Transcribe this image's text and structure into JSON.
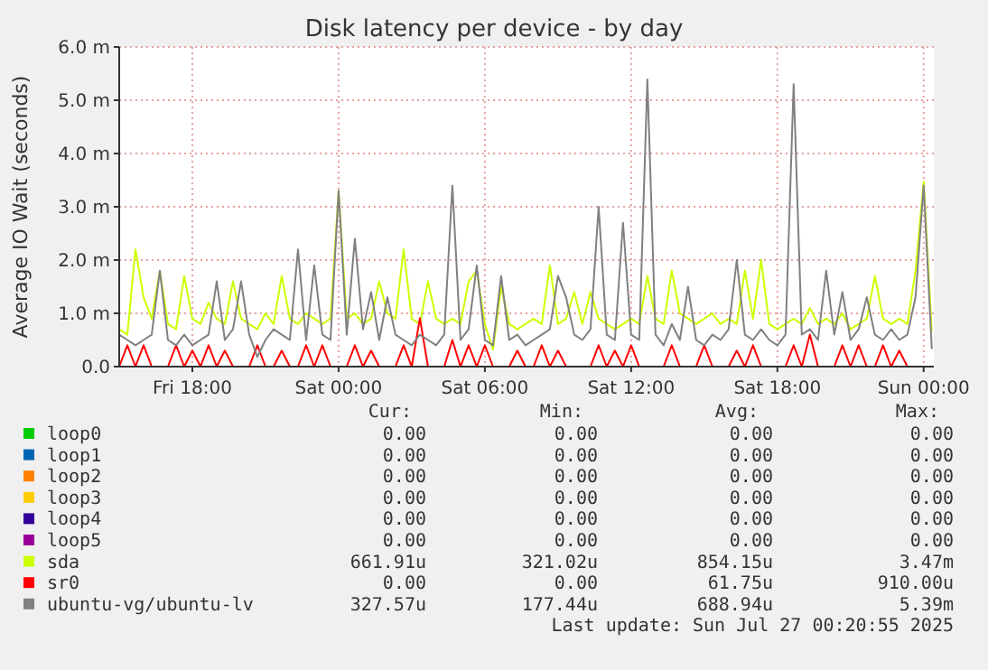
{
  "chart_data": {
    "type": "line",
    "title": "Disk latency per device - by day",
    "ylabel": "Average IO Wait (seconds)",
    "x": [
      "2025-07-25T15:00",
      "2025-07-25T15:20",
      "2025-07-25T15:40",
      "2025-07-25T16:00",
      "2025-07-25T16:20",
      "2025-07-25T16:40",
      "2025-07-25T17:00",
      "2025-07-25T17:20",
      "2025-07-25T17:40",
      "2025-07-25T18:00",
      "2025-07-25T18:20",
      "2025-07-25T18:40",
      "2025-07-25T19:00",
      "2025-07-25T19:20",
      "2025-07-25T19:40",
      "2025-07-25T20:00",
      "2025-07-25T20:20",
      "2025-07-25T20:40",
      "2025-07-25T21:00",
      "2025-07-25T21:20",
      "2025-07-25T21:40",
      "2025-07-25T22:00",
      "2025-07-25T22:20",
      "2025-07-25T22:40",
      "2025-07-25T23:00",
      "2025-07-25T23:20",
      "2025-07-25T23:40",
      "2025-07-26T00:00",
      "2025-07-26T00:20",
      "2025-07-26T00:40",
      "2025-07-26T01:00",
      "2025-07-26T01:20",
      "2025-07-26T01:40",
      "2025-07-26T02:00",
      "2025-07-26T02:20",
      "2025-07-26T02:40",
      "2025-07-26T03:00",
      "2025-07-26T03:20",
      "2025-07-26T03:40",
      "2025-07-26T04:00",
      "2025-07-26T04:20",
      "2025-07-26T04:40",
      "2025-07-26T05:00",
      "2025-07-26T05:20",
      "2025-07-26T05:40",
      "2025-07-26T06:00",
      "2025-07-26T06:20",
      "2025-07-26T06:40",
      "2025-07-26T07:00",
      "2025-07-26T07:20",
      "2025-07-26T07:40",
      "2025-07-26T08:00",
      "2025-07-26T08:20",
      "2025-07-26T08:40",
      "2025-07-26T09:00",
      "2025-07-26T09:20",
      "2025-07-26T09:40",
      "2025-07-26T10:00",
      "2025-07-26T10:20",
      "2025-07-26T10:40",
      "2025-07-26T11:00",
      "2025-07-26T11:20",
      "2025-07-26T11:40",
      "2025-07-26T12:00",
      "2025-07-26T12:20",
      "2025-07-26T12:40",
      "2025-07-26T13:00",
      "2025-07-26T13:20",
      "2025-07-26T13:40",
      "2025-07-26T14:00",
      "2025-07-26T14:20",
      "2025-07-26T14:40",
      "2025-07-26T15:00",
      "2025-07-26T15:20",
      "2025-07-26T15:40",
      "2025-07-26T16:00",
      "2025-07-26T16:20",
      "2025-07-26T16:40",
      "2025-07-26T17:00",
      "2025-07-26T17:20",
      "2025-07-26T17:40",
      "2025-07-26T18:00",
      "2025-07-26T18:20",
      "2025-07-26T18:40",
      "2025-07-26T19:00",
      "2025-07-26T19:20",
      "2025-07-26T19:40",
      "2025-07-26T20:00",
      "2025-07-26T20:20",
      "2025-07-26T20:40",
      "2025-07-26T21:00",
      "2025-07-26T21:20",
      "2025-07-26T21:40",
      "2025-07-26T22:00",
      "2025-07-26T22:20",
      "2025-07-26T22:40",
      "2025-07-26T23:00",
      "2025-07-26T23:20",
      "2025-07-26T23:40",
      "2025-07-27T00:00",
      "2025-07-27T00:20"
    ],
    "xlim": [
      "2025-07-25T15:00",
      "2025-07-27T00:25"
    ],
    "xticks": [
      {
        "value": "2025-07-25T18:00",
        "label": "Fri 18:00"
      },
      {
        "value": "2025-07-26T00:00",
        "label": "Sat 00:00"
      },
      {
        "value": "2025-07-26T06:00",
        "label": "Sat 06:00"
      },
      {
        "value": "2025-07-26T12:00",
        "label": "Sat 12:00"
      },
      {
        "value": "2025-07-26T18:00",
        "label": "Sat 18:00"
      },
      {
        "value": "2025-07-27T00:00",
        "label": "Sun 00:00"
      }
    ],
    "ylim": [
      0,
      6
    ],
    "yticks": [
      {
        "value": 0,
        "label": "0.0"
      },
      {
        "value": 1,
        "label": "1.0 m"
      },
      {
        "value": 2,
        "label": "2.0 m"
      },
      {
        "value": 3,
        "label": "3.0 m"
      },
      {
        "value": 4,
        "label": "4.0 m"
      },
      {
        "value": 5,
        "label": "5.0 m"
      },
      {
        "value": 6,
        "label": "6.0 m"
      }
    ],
    "grid": true,
    "legend": "bottom",
    "line_style": "solid",
    "series": [
      {
        "name": "loop0",
        "color": "#00cc00",
        "values": [
          null,
          null,
          null,
          null,
          null,
          null,
          null,
          null,
          null,
          null,
          null,
          null,
          null,
          null,
          null,
          null,
          null,
          null,
          null,
          null,
          null,
          null,
          null,
          null,
          null,
          null,
          null,
          null,
          null,
          null,
          null,
          null,
          null,
          null,
          null,
          null,
          null,
          null,
          null,
          null,
          null,
          null,
          null,
          null,
          null,
          null,
          null,
          null,
          null,
          null,
          null,
          null,
          null,
          null,
          null,
          null,
          null,
          null,
          null,
          null,
          null,
          null,
          null,
          null,
          null,
          null,
          null,
          null,
          null,
          null,
          null,
          null,
          null,
          null,
          null,
          null,
          null,
          null,
          null,
          null,
          null,
          null,
          null,
          null,
          null,
          null,
          null,
          null,
          null,
          null,
          null,
          null,
          null,
          null,
          null,
          null,
          null,
          null,
          null,
          null,
          null
        ]
      },
      {
        "name": "loop1",
        "color": "#0066b3",
        "values": [
          null,
          null,
          null,
          null,
          null,
          null,
          null,
          null,
          null,
          null,
          null,
          null,
          null,
          null,
          null,
          null,
          null,
          null,
          null,
          null,
          null,
          null,
          null,
          null,
          null,
          null,
          null,
          null,
          null,
          null,
          null,
          null,
          null,
          null,
          null,
          null,
          null,
          null,
          null,
          null,
          null,
          null,
          null,
          null,
          null,
          null,
          null,
          null,
          null,
          null,
          null,
          null,
          null,
          null,
          null,
          null,
          null,
          null,
          null,
          null,
          null,
          null,
          null,
          null,
          null,
          null,
          null,
          null,
          null,
          null,
          null,
          null,
          null,
          null,
          null,
          null,
          null,
          null,
          null,
          null,
          null,
          null,
          null,
          null,
          null,
          null,
          null,
          null,
          null,
          null,
          null,
          null,
          null,
          null,
          null,
          null,
          null,
          null,
          null,
          null,
          null
        ]
      },
      {
        "name": "loop2",
        "color": "#ff8000",
        "values": [
          null,
          null,
          null,
          null,
          null,
          null,
          null,
          null,
          null,
          null,
          null,
          null,
          null,
          null,
          null,
          null,
          null,
          null,
          null,
          null,
          null,
          null,
          null,
          null,
          null,
          null,
          null,
          null,
          null,
          null,
          null,
          null,
          null,
          null,
          null,
          null,
          null,
          null,
          null,
          null,
          null,
          null,
          null,
          null,
          null,
          null,
          null,
          null,
          null,
          null,
          null,
          null,
          null,
          null,
          null,
          null,
          null,
          null,
          null,
          null,
          null,
          null,
          null,
          null,
          null,
          null,
          null,
          null,
          null,
          null,
          null,
          null,
          null,
          null,
          null,
          null,
          null,
          null,
          null,
          null,
          null,
          null,
          null,
          null,
          null,
          null,
          null,
          null,
          null,
          null,
          null,
          null,
          null,
          null,
          null,
          null,
          null,
          null,
          null,
          null,
          null
        ]
      },
      {
        "name": "loop3",
        "color": "#ffcc00",
        "values": [
          null,
          null,
          null,
          null,
          null,
          null,
          null,
          null,
          null,
          null,
          null,
          null,
          null,
          null,
          null,
          null,
          null,
          null,
          null,
          null,
          null,
          null,
          null,
          null,
          null,
          null,
          null,
          null,
          null,
          null,
          null,
          null,
          null,
          null,
          null,
          null,
          null,
          null,
          null,
          null,
          null,
          null,
          null,
          null,
          null,
          null,
          null,
          null,
          null,
          null,
          null,
          null,
          null,
          null,
          null,
          null,
          null,
          null,
          null,
          null,
          null,
          null,
          null,
          null,
          null,
          null,
          null,
          null,
          null,
          null,
          null,
          null,
          null,
          null,
          null,
          null,
          null,
          null,
          null,
          null,
          null,
          null,
          null,
          null,
          null,
          null,
          null,
          null,
          null,
          null,
          null,
          null,
          null,
          null,
          null,
          null,
          null,
          null,
          null,
          null,
          null
        ]
      },
      {
        "name": "loop4",
        "color": "#330099",
        "values": [
          null,
          null,
          null,
          null,
          null,
          null,
          null,
          null,
          null,
          null,
          null,
          null,
          null,
          null,
          null,
          null,
          null,
          null,
          null,
          null,
          null,
          null,
          null,
          null,
          null,
          null,
          null,
          null,
          null,
          null,
          null,
          null,
          null,
          null,
          null,
          null,
          null,
          null,
          null,
          null,
          null,
          null,
          null,
          null,
          null,
          null,
          null,
          null,
          null,
          null,
          null,
          null,
          null,
          null,
          null,
          null,
          null,
          null,
          null,
          null,
          null,
          null,
          null,
          null,
          null,
          null,
          null,
          null,
          null,
          null,
          null,
          null,
          null,
          null,
          null,
          null,
          null,
          null,
          null,
          null,
          null,
          null,
          null,
          null,
          null,
          null,
          null,
          null,
          null,
          null,
          null,
          null,
          null,
          null,
          null,
          null,
          null,
          null,
          null,
          null,
          null
        ]
      },
      {
        "name": "loop5",
        "color": "#990099",
        "values": [
          null,
          null,
          null,
          null,
          null,
          null,
          null,
          null,
          null,
          null,
          null,
          null,
          null,
          null,
          null,
          null,
          null,
          null,
          null,
          null,
          null,
          null,
          null,
          null,
          null,
          null,
          null,
          null,
          null,
          null,
          null,
          null,
          null,
          null,
          null,
          null,
          null,
          null,
          null,
          null,
          null,
          null,
          null,
          null,
          null,
          null,
          null,
          null,
          null,
          null,
          null,
          null,
          null,
          null,
          null,
          null,
          null,
          null,
          null,
          null,
          null,
          null,
          null,
          null,
          null,
          null,
          null,
          null,
          null,
          null,
          null,
          null,
          null,
          null,
          null,
          null,
          null,
          null,
          null,
          null,
          null,
          null,
          null,
          null,
          null,
          null,
          null,
          null,
          null,
          null,
          null,
          null,
          null,
          null,
          null,
          null,
          null,
          null,
          null,
          null,
          null
        ]
      },
      {
        "name": "sda",
        "color": "#ccff00",
        "values": [
          0.7,
          0.6,
          2.2,
          1.3,
          0.9,
          1.8,
          0.8,
          0.7,
          1.7,
          0.9,
          0.8,
          1.2,
          0.9,
          0.8,
          1.6,
          0.9,
          0.8,
          0.7,
          1.0,
          0.8,
          1.7,
          0.9,
          0.8,
          1.0,
          0.9,
          0.8,
          0.9,
          3.3,
          0.9,
          1.0,
          0.8,
          0.9,
          1.6,
          1.0,
          0.9,
          2.2,
          0.9,
          0.8,
          1.6,
          0.9,
          0.8,
          0.9,
          0.8,
          1.6,
          1.8,
          0.8,
          0.32,
          1.5,
          0.8,
          0.7,
          0.8,
          0.9,
          0.8,
          1.9,
          0.8,
          0.9,
          1.4,
          0.8,
          1.4,
          0.9,
          0.8,
          0.7,
          0.8,
          0.9,
          0.8,
          1.7,
          0.9,
          0.8,
          1.8,
          1.0,
          0.9,
          0.8,
          0.9,
          1.0,
          0.8,
          0.9,
          0.8,
          1.8,
          0.9,
          2.0,
          0.8,
          0.7,
          0.8,
          0.9,
          0.8,
          1.1,
          0.8,
          0.9,
          0.8,
          1.0,
          0.7,
          0.8,
          0.9,
          1.7,
          0.9,
          0.8,
          0.9,
          0.8,
          1.8,
          3.47,
          0.66
        ]
      },
      {
        "name": "sr0",
        "color": "#ff0000",
        "values": [
          0,
          0.4,
          0,
          0.4,
          0,
          0,
          0,
          0.4,
          0,
          0.3,
          0,
          0.4,
          0,
          0.3,
          0,
          0,
          0,
          0.4,
          0,
          0,
          0.3,
          0,
          0,
          0.4,
          0,
          0.4,
          0,
          0,
          0,
          0.4,
          0,
          0.3,
          0,
          0,
          0,
          0.4,
          0,
          0.91,
          0,
          0,
          0,
          0.5,
          0,
          0.4,
          0,
          0.4,
          0,
          0,
          0,
          0.3,
          0,
          0,
          0.4,
          0,
          0.3,
          0,
          0,
          0,
          0,
          0.4,
          0,
          0.3,
          0,
          0.4,
          0,
          0,
          0,
          0,
          0.4,
          0,
          0,
          0,
          0.4,
          0,
          0,
          0,
          0.3,
          0,
          0.4,
          0,
          0,
          0,
          0,
          0.4,
          0,
          0.6,
          0,
          0,
          0,
          0.4,
          0,
          0.4,
          0,
          0,
          0.4,
          0,
          0.3,
          0,
          0,
          0,
          0
        ]
      },
      {
        "name": "ubuntu-vg/ubuntu-lv",
        "color": "#808080",
        "values": [
          0.6,
          0.5,
          0.4,
          0.5,
          0.6,
          1.8,
          0.5,
          0.4,
          0.6,
          0.4,
          0.5,
          0.6,
          1.6,
          0.5,
          0.7,
          1.6,
          0.6,
          0.18,
          0.5,
          0.7,
          0.6,
          0.5,
          2.2,
          0.5,
          1.9,
          0.6,
          0.5,
          3.3,
          0.6,
          2.4,
          0.7,
          1.4,
          0.5,
          1.3,
          0.6,
          0.5,
          0.4,
          0.6,
          0.5,
          0.4,
          0.6,
          3.4,
          0.5,
          0.7,
          1.9,
          0.5,
          0.4,
          1.7,
          0.5,
          0.6,
          0.4,
          0.5,
          0.6,
          0.7,
          1.7,
          1.3,
          0.6,
          0.5,
          0.7,
          3.0,
          0.6,
          0.5,
          2.7,
          0.6,
          0.5,
          5.39,
          0.6,
          0.4,
          0.8,
          0.5,
          1.5,
          0.5,
          0.4,
          0.6,
          0.5,
          0.7,
          2.0,
          0.6,
          0.5,
          0.7,
          0.5,
          0.4,
          0.6,
          5.3,
          0.6,
          0.7,
          0.5,
          1.8,
          0.6,
          1.4,
          0.5,
          0.7,
          1.3,
          0.6,
          0.5,
          0.7,
          0.5,
          0.6,
          1.3,
          3.4,
          0.33
        ]
      }
    ],
    "annotations": [
      "Cur:",
      "Min:",
      "Avg:",
      "Max:",
      "0.00",
      "0.00",
      "0.00",
      "0.00",
      "0.00",
      "0.00",
      "0.00",
      "0.00",
      "0.00",
      "0.00",
      "0.00",
      "0.00",
      "0.00",
      "0.00",
      "0.00",
      "0.00",
      "0.00",
      "0.00",
      "0.00",
      "0.00",
      "0.00",
      "0.00",
      "0.00",
      "0.00",
      "661.91u",
      "321.02u",
      "854.15u",
      "3.47m",
      "0.00",
      "0.00",
      "61.75u",
      "910.00u",
      "327.57u",
      "177.44u",
      "688.94u",
      "5.39m",
      "Last update: Sun Jul 27 00:20:55 2025"
    ]
  }
}
